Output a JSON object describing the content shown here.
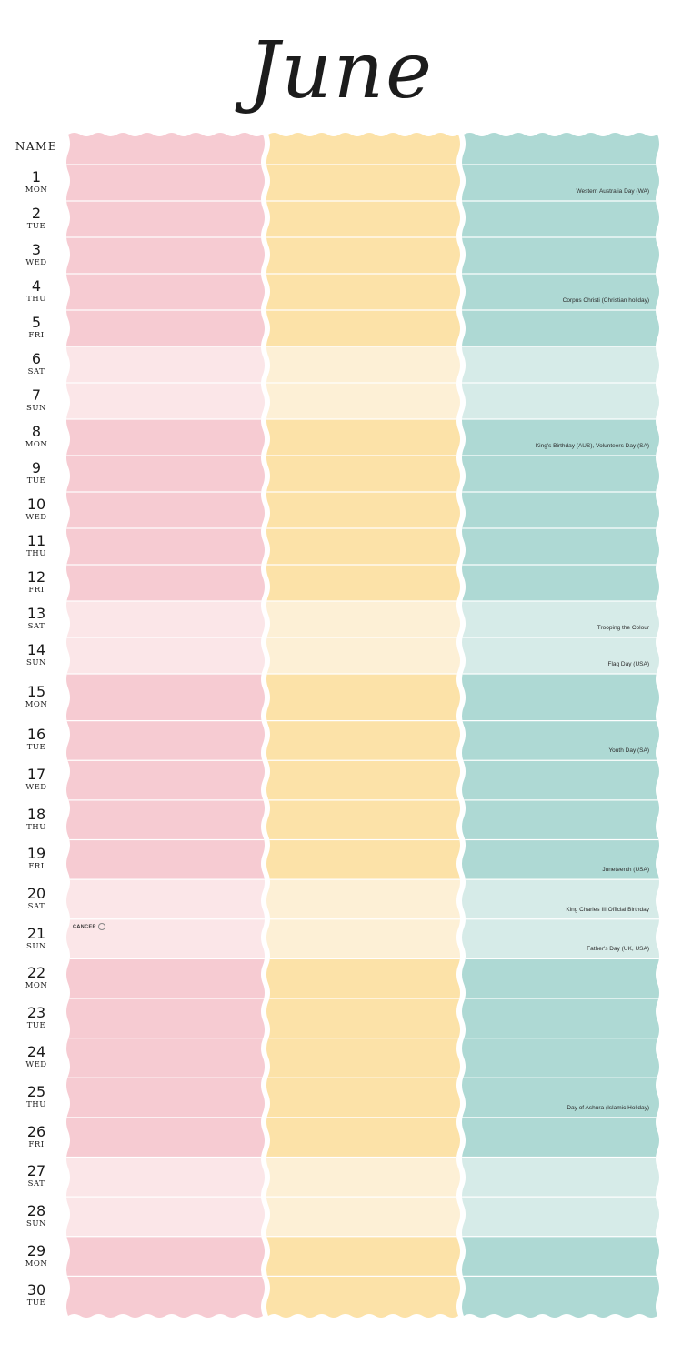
{
  "month": "June",
  "name_label": "NAME",
  "colors": {
    "pink": "#f6cbd2",
    "pink_light": "#fbe6e8",
    "yellow": "#fce2a8",
    "yellow_light": "#fdf0d6",
    "teal": "#aed9d4",
    "teal_light": "#d6ebe8"
  },
  "days": [
    {
      "num": "1",
      "dow": "MON",
      "holiday": "Western Australia Day (WA)"
    },
    {
      "num": "2",
      "dow": "TUE"
    },
    {
      "num": "3",
      "dow": "WED"
    },
    {
      "num": "4",
      "dow": "THU",
      "holiday": "Corpus Christi (Christian holiday)"
    },
    {
      "num": "5",
      "dow": "FRI"
    },
    {
      "num": "6",
      "dow": "SAT",
      "weekend": true
    },
    {
      "num": "7",
      "dow": "SUN",
      "weekend": true
    },
    {
      "num": "8",
      "dow": "MON",
      "holiday": "King's Birthday (AUS), Volunteers Day (SA)"
    },
    {
      "num": "9",
      "dow": "TUE"
    },
    {
      "num": "10",
      "dow": "WED"
    },
    {
      "num": "11",
      "dow": "THU"
    },
    {
      "num": "12",
      "dow": "FRI"
    },
    {
      "num": "13",
      "dow": "SAT",
      "weekend": true,
      "holiday": "Trooping the Colour"
    },
    {
      "num": "14",
      "dow": "SUN",
      "weekend": true,
      "holiday": "Flag Day (USA)"
    },
    {
      "num": "15",
      "dow": "MON"
    },
    {
      "num": "16",
      "dow": "TUE",
      "holiday": "Youth Day (SA)"
    },
    {
      "num": "17",
      "dow": "WED"
    },
    {
      "num": "18",
      "dow": "THU"
    },
    {
      "num": "19",
      "dow": "FRI",
      "holiday": "Juneteenth (USA)"
    },
    {
      "num": "20",
      "dow": "SAT",
      "weekend": true,
      "holiday": "King Charles III Official Birthday"
    },
    {
      "num": "21",
      "dow": "SUN",
      "weekend": true,
      "holiday": "Father's Day (UK, USA)",
      "note": "CANCER"
    },
    {
      "num": "22",
      "dow": "MON"
    },
    {
      "num": "23",
      "dow": "TUE"
    },
    {
      "num": "24",
      "dow": "WED"
    },
    {
      "num": "25",
      "dow": "THU",
      "holiday": "Day of Ashura (Islamic Holiday)"
    },
    {
      "num": "26",
      "dow": "FRI"
    },
    {
      "num": "27",
      "dow": "SAT",
      "weekend": true
    },
    {
      "num": "28",
      "dow": "SUN",
      "weekend": true
    },
    {
      "num": "29",
      "dow": "MON"
    },
    {
      "num": "30",
      "dow": "TUE"
    }
  ]
}
